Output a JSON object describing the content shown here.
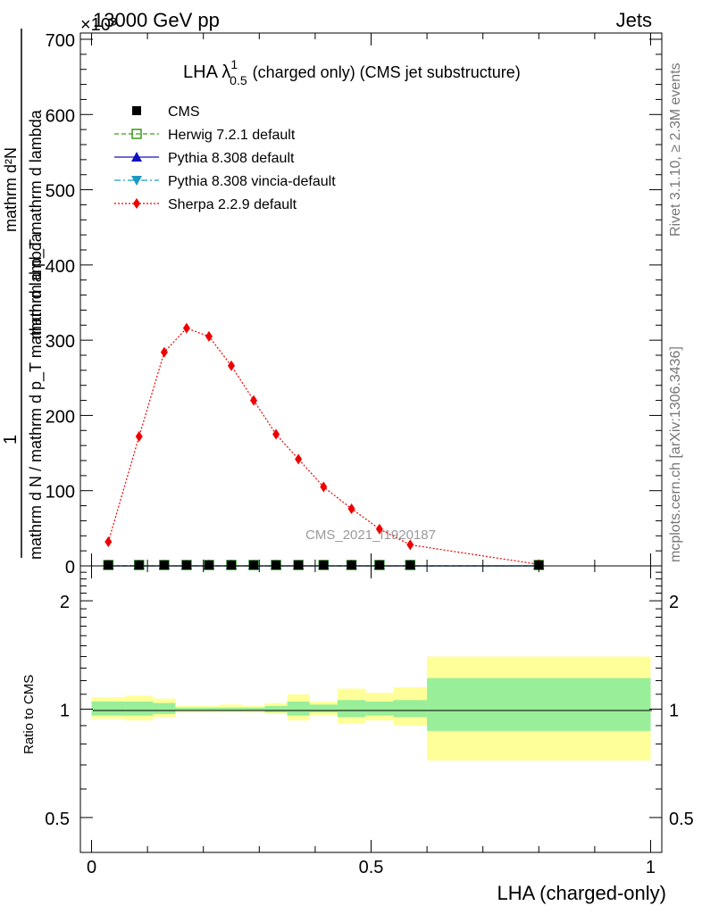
{
  "header": {
    "left": "13000 GeV pp",
    "right": "Jets",
    "multiplier": "×10³"
  },
  "side_text": {
    "rivet": "Rivet 3.1.10, ≥ 2.3M events",
    "mcplots": "mcplots.cern.ch [arXiv:1306.3436]"
  },
  "watermark": "CMS_2021_I1920187",
  "chart_data": [
    {
      "type": "line",
      "title": "LHA λ",
      "title_sup": "1",
      "title_sub": "0.5",
      "title_suffix": "(charged only) (CMS jet substructure)",
      "ylabel_numerator": "1",
      "ylabel_denominator": "mathrm d N / mathrm d p_T mathrm d lambda",
      "ylabel_top": "mathrm d²N",
      "ylabel_main": "mathrm d p_T mathrm d lambda",
      "xlim": [
        -0.02,
        1.02
      ],
      "ylim": [
        0,
        700
      ],
      "yticks": [
        0,
        100,
        200,
        300,
        400,
        500,
        600,
        700
      ],
      "ytick_labels": [
        "0",
        "100",
        "200",
        "300",
        "400",
        "500",
        "600",
        "700"
      ],
      "x": [
        0.03,
        0.085,
        0.13,
        0.17,
        0.21,
        0.25,
        0.29,
        0.33,
        0.37,
        0.415,
        0.465,
        0.515,
        0.57,
        0.8
      ],
      "legend": [
        "CMS",
        "Herwig 7.2.1 default",
        "Pythia 8.308 default",
        "Pythia 8.308 vincia-default",
        "Sherpa 2.2.9 default"
      ],
      "legend_position": "top-left",
      "series": [
        {
          "name": "CMS",
          "color": "#000000",
          "marker": "square",
          "values": [
            0,
            0,
            0,
            0,
            0,
            0,
            0,
            0,
            0,
            0,
            0,
            0,
            0,
            0
          ]
        },
        {
          "name": "Herwig 7.2.1 default",
          "color": "#3a9a1a",
          "marker": "open-square",
          "dash": "dashed",
          "values": [
            0,
            0,
            0,
            0,
            0,
            0,
            0,
            0,
            0,
            0,
            0,
            0,
            0,
            0
          ]
        },
        {
          "name": "Pythia 8.308 default",
          "color": "#1010c0",
          "marker": "triangle-up",
          "dash": "solid",
          "values": [
            0,
            0,
            0,
            0,
            0,
            0,
            0,
            0,
            0,
            0,
            0,
            0,
            0,
            0
          ]
        },
        {
          "name": "Pythia 8.308 vincia-default",
          "color": "#1a9ac0",
          "marker": "triangle-down",
          "dash": "dashdot",
          "values": [
            0,
            0,
            0,
            0,
            0,
            0,
            0,
            0,
            0,
            0,
            0,
            0,
            0,
            0
          ]
        },
        {
          "name": "Sherpa 2.2.9 default",
          "color": "#ee0000",
          "marker": "diamond",
          "dash": "dotted",
          "values": [
            32,
            172,
            284,
            316,
            305,
            266,
            220,
            175,
            142,
            105,
            76,
            49,
            28,
            2
          ]
        }
      ]
    },
    {
      "type": "area",
      "ylabel": "Ratio to CMS",
      "xlabel": "LHA (charged-only)",
      "xlim": [
        -0.02,
        1.02
      ],
      "ylim": [
        0.4,
        2.5
      ],
      "log_y": true,
      "yticks": [
        0.5,
        1,
        2
      ],
      "ytick_labels": [
        "0.5",
        "1",
        "2"
      ],
      "xticks": [
        0,
        0.5,
        1
      ],
      "xtick_labels": [
        "0",
        "0.5",
        "1"
      ],
      "reference_line": 1,
      "bins": [
        {
          "lo": 0.0,
          "hi": 0.06,
          "inner": [
            0.96,
            1.05
          ],
          "outer": [
            0.94,
            1.08
          ]
        },
        {
          "lo": 0.06,
          "hi": 0.11,
          "inner": [
            0.96,
            1.05
          ],
          "outer": [
            0.93,
            1.09
          ]
        },
        {
          "lo": 0.11,
          "hi": 0.15,
          "inner": [
            0.97,
            1.04
          ],
          "outer": [
            0.95,
            1.07
          ]
        },
        {
          "lo": 0.15,
          "hi": 0.19,
          "inner": [
            0.99,
            1.01
          ],
          "outer": [
            0.98,
            1.02
          ]
        },
        {
          "lo": 0.19,
          "hi": 0.23,
          "inner": [
            0.99,
            1.01
          ],
          "outer": [
            0.98,
            1.02
          ]
        },
        {
          "lo": 0.23,
          "hi": 0.27,
          "inner": [
            0.99,
            1.01
          ],
          "outer": [
            0.98,
            1.03
          ]
        },
        {
          "lo": 0.27,
          "hi": 0.31,
          "inner": [
            0.99,
            1.01
          ],
          "outer": [
            0.98,
            1.02
          ]
        },
        {
          "lo": 0.31,
          "hi": 0.35,
          "inner": [
            0.98,
            1.02
          ],
          "outer": [
            0.97,
            1.04
          ]
        },
        {
          "lo": 0.35,
          "hi": 0.39,
          "inner": [
            0.96,
            1.05
          ],
          "outer": [
            0.93,
            1.1
          ]
        },
        {
          "lo": 0.39,
          "hi": 0.44,
          "inner": [
            0.98,
            1.03
          ],
          "outer": [
            0.96,
            1.05
          ]
        },
        {
          "lo": 0.44,
          "hi": 0.49,
          "inner": [
            0.95,
            1.06
          ],
          "outer": [
            0.91,
            1.14
          ]
        },
        {
          "lo": 0.49,
          "hi": 0.54,
          "inner": [
            0.96,
            1.05
          ],
          "outer": [
            0.93,
            1.11
          ]
        },
        {
          "lo": 0.54,
          "hi": 0.6,
          "inner": [
            0.95,
            1.06
          ],
          "outer": [
            0.9,
            1.15
          ]
        },
        {
          "lo": 0.6,
          "hi": 1.0,
          "inner": [
            0.87,
            1.22
          ],
          "outer": [
            0.72,
            1.4
          ]
        }
      ]
    }
  ]
}
